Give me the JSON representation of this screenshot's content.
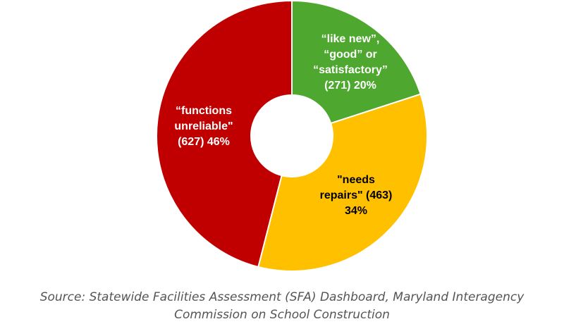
{
  "chart_data": {
    "type": "pie",
    "variant": "donut",
    "slices": [
      {
        "label_lines": [
          "“like new”,",
          "“good” or",
          "“satisfactory”",
          "(271) 20%"
        ],
        "count": 271,
        "percent": 20,
        "color": "#4ea72e",
        "text_color": "#ffffff"
      },
      {
        "label_lines": [
          "\"needs",
          "repairs\" (463)",
          "34%"
        ],
        "count": 463,
        "percent": 34,
        "color": "#ffc000",
        "text_color": "#000000"
      },
      {
        "label_lines": [
          "“functions",
          "unreliable\"",
          "(627) 46%"
        ],
        "count": 627,
        "percent": 46,
        "color": "#c00000",
        "text_color": "#ffffff"
      }
    ],
    "start_angle": "top, clockwise",
    "legend": "none"
  },
  "source": {
    "line1": "Source: Statewide Facilities Assessment (SFA) Dashboard, Maryland Interagency",
    "line2": "Commission on School Construction"
  }
}
